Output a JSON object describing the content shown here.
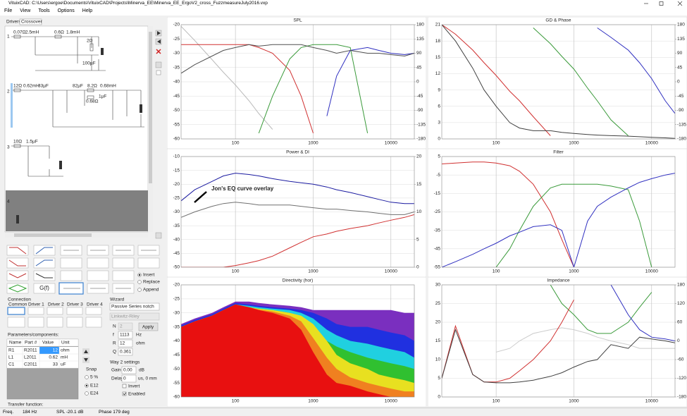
{
  "window": {
    "title": "VituixCAD: C:\\Users\\ergoe\\Documents\\VituixCAD\\Projects\\Minerva_EE\\Minerva_EE_ErgoV2_cross_FuzzmeasureJuly2016.vxp"
  },
  "menu": [
    "File",
    "View",
    "Tools",
    "Options",
    "Help"
  ],
  "tabs": [
    "Drivers",
    "Crossover"
  ],
  "schematic": {
    "labels": [
      "1",
      "0.07Ω",
      "2.5mH",
      "0.6Ω",
      "1.8mH",
      "2Ω",
      "100µF",
      "2",
      "12Ω",
      "0.62mH",
      "33µF",
      "82µF",
      "8.2Ω",
      "0.68mH",
      "0.68Ω",
      "1µF",
      "3",
      "10Ω",
      "1.5µF",
      "4"
    ]
  },
  "palette": {
    "block": "G(f)",
    "modes": [
      "Insert",
      "Replace",
      "Append"
    ]
  },
  "connection": {
    "title": "Connection",
    "items": [
      "Common",
      "Driver 1",
      "Driver 2",
      "Driver 3",
      "Driver 4"
    ]
  },
  "wizard": {
    "title": "Wizard",
    "type": "Passive Series notch",
    "alignment": "Linkwitz-Riley",
    "fields": [
      [
        "N",
        "2",
        ""
      ],
      [
        "f",
        "1113",
        "Hz"
      ],
      [
        "R",
        "12",
        "ohm"
      ],
      [
        "Q",
        "0.361",
        ""
      ]
    ],
    "button": "Apply"
  },
  "parameters": {
    "title": "Parameters/components:",
    "header": [
      "Name",
      "Part #",
      "Value",
      "Unit"
    ],
    "rows": [
      [
        "R1",
        "R2011",
        "12",
        "ohm"
      ],
      [
        "L1",
        "L2011",
        "0.62",
        "mH"
      ],
      [
        "C1",
        "C2011",
        "33",
        "uF"
      ]
    ]
  },
  "snap": {
    "title": "Snap",
    "options": [
      "5 %",
      "E12",
      "E24"
    ]
  },
  "way": {
    "title": "Way 2 settings",
    "gain": [
      "Gain",
      "0.00",
      "dB"
    ],
    "delay": [
      "Delay",
      "0",
      "us, 0 mm"
    ],
    "checks": [
      "Invert",
      "Enabled"
    ]
  },
  "transfer": "Transfer function:",
  "status": [
    "Freq.",
    "184 Hz",
    "SPL -20.1 dB",
    "Phase 179 deg"
  ],
  "plots": [
    {
      "title": "SPL",
      "type": "line",
      "log_x": true,
      "xlim": [
        20,
        20000
      ],
      "xticks": [
        100,
        1000,
        10000
      ],
      "ylim": [
        -60,
        -20
      ],
      "yticks": [
        -60,
        -55,
        -50,
        -45,
        -40,
        -35,
        -30,
        -25,
        -20
      ],
      "y2lim": [
        -180,
        180
      ],
      "y2ticks": [
        -180,
        -135,
        -90,
        -45,
        0,
        45,
        90,
        135,
        180
      ],
      "x": [
        20,
        30,
        50,
        70,
        100,
        150,
        200,
        300,
        500,
        700,
        1000,
        1500,
        2000,
        3000,
        5000,
        7000,
        10000,
        15000,
        20000
      ],
      "series": [
        {
          "color": "#bbbbbb",
          "axis": "y2",
          "values": [
            175,
            130,
            70,
            30,
            -10,
            -60,
            -100,
            -150,
            null,
            null,
            null,
            null,
            null,
            null,
            null,
            null,
            null,
            null,
            null
          ]
        },
        {
          "color": "#d03030",
          "values": [
            -27,
            -27,
            -27,
            -27,
            -27,
            -27,
            -28,
            -30,
            -36,
            -45,
            -58,
            null,
            null,
            null,
            null,
            null,
            null,
            null,
            null
          ]
        },
        {
          "color": "#3a9a3a",
          "values": [
            null,
            null,
            null,
            null,
            null,
            null,
            -58,
            -45,
            -32,
            -28,
            -27,
            -27,
            -27,
            -28,
            -58,
            null,
            null,
            null,
            null
          ]
        },
        {
          "color": "#3030c0",
          "values": [
            null,
            null,
            null,
            null,
            null,
            null,
            null,
            null,
            null,
            null,
            null,
            -52,
            -38,
            -29,
            -28,
            -29,
            -30,
            -30.5,
            -30
          ]
        },
        {
          "color": "#505050",
          "values": [
            -37,
            -34,
            -31,
            -29,
            -28,
            -27,
            -27.5,
            -27,
            -27,
            -27,
            -28,
            -29,
            -30,
            -29,
            -30,
            -30,
            -30.5,
            -31,
            -30
          ]
        }
      ]
    },
    {
      "title": "GD & Phase",
      "type": "line",
      "log_x": true,
      "xlim": [
        20,
        20000
      ],
      "xticks": [
        100,
        1000,
        10000
      ],
      "ylim": [
        0,
        21
      ],
      "yticks": [
        0,
        3,
        6,
        9,
        12,
        15,
        18,
        21
      ],
      "y2lim": [
        -180,
        180
      ],
      "y2ticks": [
        -180,
        -135,
        -90,
        -45,
        0,
        45,
        90,
        135,
        180
      ],
      "x": [
        20,
        30,
        50,
        70,
        100,
        150,
        200,
        300,
        500,
        700,
        1000,
        1500,
        2000,
        3000,
        5000,
        7000,
        10000,
        15000,
        20000
      ],
      "series": [
        {
          "color": "#d03030",
          "axis": "y2",
          "values": [
            180,
            150,
            100,
            60,
            20,
            -30,
            -60,
            -110,
            -170,
            null,
            null,
            null,
            null,
            null,
            null,
            null,
            null,
            null,
            null
          ]
        },
        {
          "color": "#3a9a3a",
          "axis": "y2",
          "values": [
            null,
            null,
            null,
            null,
            null,
            null,
            null,
            170,
            120,
            80,
            40,
            -20,
            -60,
            -120,
            -170,
            null,
            null,
            null,
            null
          ]
        },
        {
          "color": "#3030c0",
          "axis": "y2",
          "values": [
            null,
            null,
            null,
            null,
            null,
            null,
            null,
            null,
            null,
            null,
            null,
            null,
            170,
            140,
            100,
            60,
            10,
            -60,
            -100
          ]
        },
        {
          "color": "#404040",
          "values": [
            21,
            18,
            13,
            9,
            6,
            3,
            2,
            1.5,
            1.5,
            1.2,
            1,
            0.8,
            0.7,
            0.6,
            0.5,
            0.4,
            0.3,
            0.2,
            0.1
          ]
        }
      ]
    },
    {
      "title": "Power & DI",
      "type": "line",
      "log_x": true,
      "xlim": [
        20,
        20000
      ],
      "xticks": [
        100,
        1000,
        10000
      ],
      "ylim": [
        -50,
        -10
      ],
      "yticks": [
        -50,
        -45,
        -40,
        -35,
        -30,
        -25,
        -20,
        -15,
        -10
      ],
      "y2lim": [
        0,
        20
      ],
      "y2ticks": [
        0,
        5,
        10,
        15,
        20
      ],
      "annotation": "Jon's EQ curve overlay",
      "x": [
        20,
        30,
        50,
        70,
        100,
        150,
        200,
        300,
        500,
        700,
        1000,
        1500,
        2000,
        3000,
        5000,
        7000,
        10000,
        15000,
        20000
      ],
      "series": [
        {
          "color": "#d03030",
          "axis": "y2",
          "values": [
            0,
            0,
            0,
            0,
            0.3,
            0.8,
            1.2,
            2,
            3.5,
            4.5,
            5.5,
            6,
            6.5,
            7,
            7.5,
            8,
            8.5,
            9,
            9.5
          ]
        },
        {
          "color": "#707070",
          "values": [
            -32,
            -30,
            -28,
            -27,
            -26.5,
            -27,
            -27.5,
            -27.5,
            -27.5,
            -28,
            -28.5,
            -29,
            -29,
            -29.5,
            -30,
            -30.5,
            -31,
            -31,
            -30
          ]
        },
        {
          "color": "#1a1aa0",
          "values": [
            -26,
            -22,
            -19,
            -17,
            -16,
            -16.5,
            -17,
            -18,
            -19,
            -19.5,
            -20,
            -21,
            -22,
            -23,
            -24.5,
            -25.5,
            -26.5,
            -27,
            -27
          ]
        }
      ]
    },
    {
      "title": "Filter",
      "type": "line",
      "log_x": true,
      "xlim": [
        20,
        20000
      ],
      "xticks": [
        100,
        1000,
        10000
      ],
      "ylim": [
        -55,
        5
      ],
      "yticks": [
        -55,
        -45,
        -35,
        -25,
        -15,
        -5,
        5
      ],
      "x": [
        20,
        30,
        50,
        70,
        100,
        150,
        200,
        300,
        500,
        700,
        1000,
        1500,
        2000,
        3000,
        5000,
        7000,
        10000,
        15000,
        20000
      ],
      "series": [
        {
          "color": "#d03030",
          "values": [
            1,
            1.5,
            2,
            2,
            1.5,
            0,
            -3,
            -10,
            -25,
            -40,
            -55,
            null,
            null,
            null,
            null,
            null,
            null,
            null,
            null
          ]
        },
        {
          "color": "#3a9a3a",
          "values": [
            null,
            null,
            null,
            null,
            -55,
            -45,
            -35,
            -22,
            -12,
            -10,
            -10,
            -10,
            -10,
            -11,
            -13,
            -30,
            -55,
            null,
            null
          ]
        },
        {
          "color": "#3030c0",
          "values": [
            -55,
            -52,
            -48,
            -45,
            -42,
            -38,
            -36,
            -33,
            -32,
            -35,
            -55,
            -30,
            -22,
            -17,
            -12,
            -9,
            -7,
            -5,
            -4
          ]
        }
      ]
    },
    {
      "title": "Directivity (hor)",
      "type": "area",
      "log_x": true,
      "xlim": [
        20,
        20000
      ],
      "xticks": [
        100,
        1000,
        10000
      ],
      "ylim": [
        -60,
        -20
      ],
      "yticks": [
        -60,
        -55,
        -50,
        -45,
        -40,
        -35,
        -30,
        -25,
        -20
      ],
      "x": [
        20,
        30,
        50,
        70,
        100,
        150,
        200,
        300,
        500,
        700,
        1000,
        1500,
        2000,
        3000,
        5000,
        7000,
        10000,
        15000,
        20000
      ],
      "series": [
        {
          "color": "#7a2fbf",
          "values": [
            -34,
            -32,
            -30,
            -28,
            -26,
            -26,
            -26.5,
            -27,
            -27.5,
            -28,
            -29,
            -29,
            -29,
            -29,
            -29,
            -29,
            -29,
            -30,
            -30
          ]
        },
        {
          "color": "#2030e0",
          "values": [
            -34.5,
            -32.5,
            -30.5,
            -28.5,
            -26.5,
            -27,
            -27.5,
            -28,
            -28.5,
            -29,
            -30,
            -32,
            -34,
            -35,
            -35,
            -36,
            -37,
            -38,
            -40
          ]
        },
        {
          "color": "#20d0e0",
          "values": [
            -35,
            -33,
            -31,
            -29,
            -27,
            -27.5,
            -28,
            -28.5,
            -29,
            -30,
            -32,
            -36,
            -38,
            -40,
            -41,
            -42,
            -43,
            -44,
            -46
          ]
        },
        {
          "color": "#30c030",
          "values": [
            -35,
            -33,
            -31,
            -29,
            -27,
            -28,
            -28.5,
            -29,
            -30,
            -32,
            -36,
            -40,
            -42,
            -44,
            -46,
            -47,
            -48,
            -49,
            -50
          ]
        },
        {
          "color": "#e8e020",
          "values": [
            -35,
            -33,
            -31,
            -29,
            -27,
            -28,
            -28.5,
            -29,
            -30,
            -31,
            -34,
            -40,
            -45,
            -48,
            -50,
            -52,
            -53,
            -54,
            -55
          ]
        },
        {
          "color": "#f08020",
          "values": [
            -35,
            -33,
            -31,
            -29,
            -27,
            -28,
            -28.8,
            -29.5,
            -31,
            -33,
            -39,
            -46,
            -50,
            -53,
            -55,
            -56,
            -57,
            -58,
            -58
          ]
        },
        {
          "color": "#e81010",
          "values": [
            -35,
            -33,
            -31,
            -29,
            -27,
            -28,
            -29,
            -30,
            -32,
            -36,
            -44,
            -52,
            -55,
            -56,
            -58,
            -59,
            -60,
            -60,
            -60
          ]
        }
      ]
    },
    {
      "title": "Impedance",
      "type": "line",
      "log_x": true,
      "xlim": [
        20,
        20000
      ],
      "xticks": [
        100,
        1000,
        10000
      ],
      "ylim": [
        0,
        30
      ],
      "yticks": [
        0,
        5,
        10,
        15,
        20,
        25,
        30
      ],
      "y2lim": [
        -180,
        180
      ],
      "y2ticks": [
        -180,
        -120,
        -60,
        0,
        60,
        120,
        180
      ],
      "x": [
        20,
        30,
        50,
        70,
        100,
        150,
        200,
        300,
        500,
        700,
        1000,
        1500,
        2000,
        3000,
        5000,
        7000,
        10000,
        15000,
        20000
      ],
      "series": [
        {
          "color": "#cccccc",
          "values": [
            null,
            null,
            null,
            null,
            12,
            13,
            15,
            17,
            18,
            18.5,
            18,
            17,
            16,
            15,
            14,
            13,
            13,
            13,
            13
          ]
        },
        {
          "color": "#3a9a3a",
          "values": [
            null,
            null,
            null,
            null,
            null,
            null,
            null,
            null,
            30,
            25,
            22,
            18,
            17,
            17,
            20,
            24,
            28,
            null,
            null
          ]
        },
        {
          "color": "#3030c0",
          "values": [
            null,
            null,
            null,
            null,
            null,
            null,
            null,
            null,
            null,
            null,
            null,
            null,
            null,
            30,
            22,
            18,
            16,
            15.5,
            15
          ]
        },
        {
          "color": "#d03030",
          "values": [
            5,
            19,
            6,
            4,
            4,
            5,
            7,
            10,
            15,
            20,
            26,
            null,
            null,
            null,
            null,
            null,
            null,
            null,
            null
          ]
        },
        {
          "color": "#404040",
          "values": [
            5,
            18,
            6,
            4,
            3.8,
            3.8,
            4,
            4.5,
            5.5,
            6.5,
            8,
            9.5,
            10,
            14,
            13,
            16,
            15.5,
            15,
            14.5
          ]
        }
      ]
    }
  ]
}
